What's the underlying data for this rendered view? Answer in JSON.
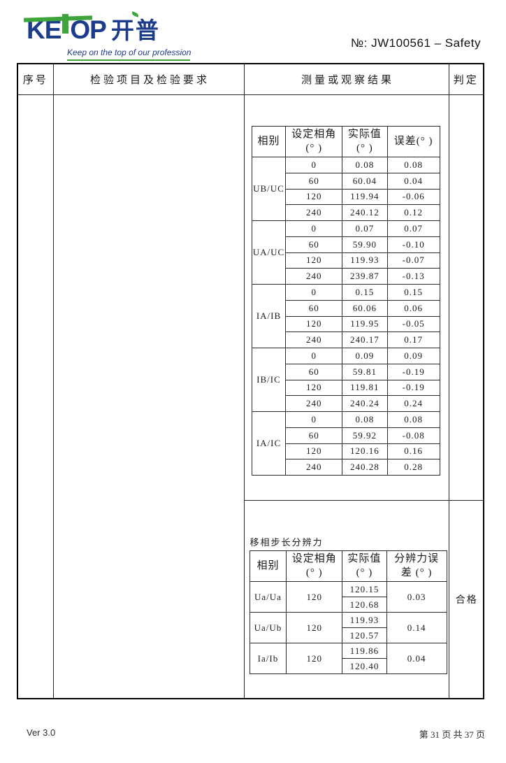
{
  "header": {
    "logo": {
      "text_ke": "KE",
      "text_op": "OP",
      "text_cn": "开普",
      "slogan": "Keep on the top of our profession",
      "brand_blue": "#1c3b8a",
      "brand_green": "#3fa43c"
    },
    "doc_no": "№:  JW100561 – Safety"
  },
  "outer_table": {
    "col_seq": "序号",
    "col_item": "检验项目及检验要求",
    "col_result": "测量或观察结果",
    "col_verdict": "判定",
    "verdict": "合格"
  },
  "phase_error_table": {
    "headers": [
      "相别",
      "设定相角\n(° )",
      "实际值\n(° )",
      "误差(° )"
    ],
    "groups": [
      {
        "name": "UB/UC",
        "rows": [
          [
            "0",
            "0.08",
            "0.08"
          ],
          [
            "60",
            "60.04",
            "0.04"
          ],
          [
            "120",
            "119.94",
            "-0.06"
          ],
          [
            "240",
            "240.12",
            "0.12"
          ]
        ]
      },
      {
        "name": "UA/UC",
        "rows": [
          [
            "0",
            "0.07",
            "0.07"
          ],
          [
            "60",
            "59.90",
            "-0.10"
          ],
          [
            "120",
            "119.93",
            "-0.07"
          ],
          [
            "240",
            "239.87",
            "-0.13"
          ]
        ]
      },
      {
        "name": "IA/IB",
        "rows": [
          [
            "0",
            "0.15",
            "0.15"
          ],
          [
            "60",
            "60.06",
            "0.06"
          ],
          [
            "120",
            "119.95",
            "-0.05"
          ],
          [
            "240",
            "240.17",
            "0.17"
          ]
        ]
      },
      {
        "name": "IB/IC",
        "rows": [
          [
            "0",
            "0.09",
            "0.09"
          ],
          [
            "60",
            "59.81",
            "-0.19"
          ],
          [
            "120",
            "119.81",
            "-0.19"
          ],
          [
            "240",
            "240.24",
            "0.24"
          ]
        ]
      },
      {
        "name": "IA/IC",
        "rows": [
          [
            "0",
            "0.08",
            "0.08"
          ],
          [
            "60",
            "59.92",
            "-0.08"
          ],
          [
            "120",
            "120.16",
            "0.16"
          ],
          [
            "240",
            "240.28",
            "0.28"
          ]
        ]
      }
    ]
  },
  "resolution_table": {
    "title": "移相步长分辨力",
    "headers": [
      "相别",
      "设定相角\n(° )",
      "实际值\n(° )",
      "分辨力误\n差 (° )"
    ],
    "groups": [
      {
        "name": "Ua/Ua",
        "set_angle": "120",
        "actual_values": [
          "120.15",
          "120.68"
        ],
        "resolution_error": "0.03"
      },
      {
        "name": "Ua/Ub",
        "set_angle": "120",
        "actual_values": [
          "119.93",
          "120.57"
        ],
        "resolution_error": "0.14"
      },
      {
        "name": "Ia/Ib",
        "set_angle": "120",
        "actual_values": [
          "119.86",
          "120.40"
        ],
        "resolution_error": "0.04"
      }
    ]
  },
  "footer": {
    "version": "Ver 3.0",
    "page_info": "第 31 页 共 37 页"
  }
}
